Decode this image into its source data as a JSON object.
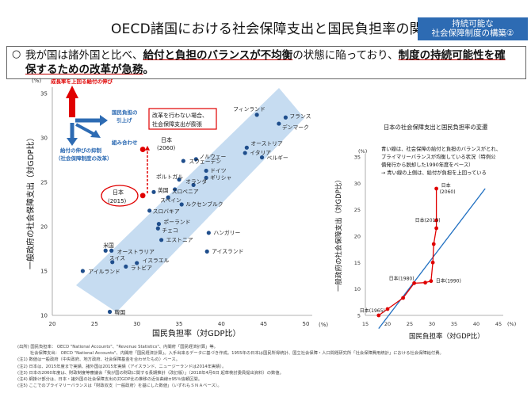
{
  "page": {
    "title": "OECD諸国における社会保障支出と国民負担率の関係",
    "badge": [
      "持続可能な",
      "社会保障制度の構築②"
    ],
    "headline_mark": "○",
    "headline": {
      "p1": "我が国は諸外国と比べ、",
      "p2": "給付と負担のバランスが不均衡",
      "p3": "の状態に陥っており、",
      "p4": "制度の持続可能性を確保するための改革が急務",
      "p5": "。"
    }
  },
  "main_chart": {
    "y_unit": "(%)",
    "x_unit": "(%)",
    "ylabel": "一般政府の社会保障支出（対GDP比）",
    "xlabel": "国民負担率（対GDP比）",
    "legend": {
      "up": "成長率を上回る給付の伸び",
      "right": [
        "国民負担の",
        "引上げ"
      ],
      "down": [
        "給付の伸びの抑制",
        "（社会保障制度の改革）"
      ],
      "diag": "組み合わせ"
    },
    "callout": [
      "改革を行わない場合、",
      "社会保障支出が膨張"
    ],
    "japan_2060_label": [
      "日本",
      "(2060)"
    ],
    "japan_2015_label": [
      "日本",
      "(2015)"
    ]
  },
  "inset_chart": {
    "title": "日本の社会保障支出と国民負担率の変遷",
    "y_unit": "(%)",
    "x_unit": "(%)",
    "ylabel": "一般政府の社会保障支出（対GDP比）",
    "xlabel": "国民負担率（対GDP比）",
    "note": [
      "青い線は、社会保障の給付と負担のバランスがとれ、",
      "プライマリーバランスが均衡している状況（特例公",
      "債発行から脱却した1990年度をベース）",
      "→ 青い線の上側は、給付が負担を上回っている"
    ]
  },
  "notes": [
    "(出所) 国民負担率： OECD \"National Accounts\"、\"Revenue Statistics\"、内閣府「国民経済計算」等。",
    "　　　社会保障支出： OECD \"National Accounts\"、内閣府「国民経済計算」。入手出来るデータに基づき作成。1955年の日本は国民所得統計、国立社会保障・人口問題研究所「社会保障費用統計」における社会保障給付費。",
    "(注1) 数値は一般政府（中央政府、地方政府、社会保障基金を合わせたもの）ベース。",
    "(注2) 日本は、2015年度まで実績、諸外国は2015年実績（アイスランド、ニュージーランドは2014年実績）。",
    "(注3) 日本の2060年度は、財政制度等審議会「我が国の財政に関する長期推計（改訂版）」（2018年4月6日 起草検討委員提出資料）の数値。",
    "(注4) 網掛け部分は、日本・諸外国の社会保障支出の対GDP比の推移の近似曲線±95％信頼区間。",
    "(注5) ここでのプライマリーバランスは「財政収支（一般政府）を基にした数値」（いずれもＳＮＡベース）。"
  ],
  "chart_data": [
    {
      "type": "scatter",
      "title": "",
      "xlabel": "国民負担率（対GDP比）",
      "ylabel": "一般政府の社会保障支出（対GDP比）",
      "xlim": [
        20,
        50
      ],
      "ylim": [
        10,
        35
      ],
      "x_ticks": [
        20,
        25,
        30,
        35,
        40,
        45,
        50
      ],
      "y_ticks": [
        10,
        15,
        20,
        25,
        30,
        35
      ],
      "grid": false,
      "points": [
        {
          "label": "フィンランド",
          "x": 44.2,
          "y": 32.6
        },
        {
          "label": "フランス",
          "x": 47.6,
          "y": 32.3
        },
        {
          "label": "デンマーク",
          "x": 46.8,
          "y": 31.6
        },
        {
          "label": "オーストリア",
          "x": 43.0,
          "y": 28.9
        },
        {
          "label": "イタリア",
          "x": 42.8,
          "y": 28.3
        },
        {
          "label": "ベルギー",
          "x": 44.8,
          "y": 27.8
        },
        {
          "label": "ノルウェー",
          "x": 37.0,
          "y": 27.6
        },
        {
          "label": "スウェーデン",
          "x": 35.5,
          "y": 27.4
        },
        {
          "label": "ドイツ",
          "x": 38.2,
          "y": 26.3
        },
        {
          "label": "ギリシャ",
          "x": 38.2,
          "y": 25.5
        },
        {
          "label": "ポルトガル",
          "x": 35.0,
          "y": 25.3
        },
        {
          "label": "オランダ",
          "x": 36.7,
          "y": 24.7
        },
        {
          "label": "スロベニア",
          "x": 34.5,
          "y": 24.2
        },
        {
          "label": "英国",
          "x": 32.0,
          "y": 23.9
        },
        {
          "label": "スペイン",
          "x": 33.7,
          "y": 23.3
        },
        {
          "label": "ルクセンブルク",
          "x": 35.3,
          "y": 22.5
        },
        {
          "label": "スロバキア",
          "x": 31.5,
          "y": 21.8
        },
        {
          "label": "ポーランド",
          "x": 32.6,
          "y": 20.3
        },
        {
          "label": "チェコ",
          "x": 32.5,
          "y": 19.8
        },
        {
          "label": "ハンガリー",
          "x": 38.5,
          "y": 19.3
        },
        {
          "label": "エストニア",
          "x": 32.9,
          "y": 18.5
        },
        {
          "label": "米国",
          "x": 26.3,
          "y": 17.3
        },
        {
          "label": "オーストラリア",
          "x": 27.0,
          "y": 17.3
        },
        {
          "label": "アイスランド",
          "x": 38.3,
          "y": 17.2
        },
        {
          "label": "スイス",
          "x": 27.1,
          "y": 16.0
        },
        {
          "label": "ラトビア",
          "x": 28.7,
          "y": 15.5
        },
        {
          "label": "イスラエル",
          "x": 30.0,
          "y": 15.9
        },
        {
          "label": "アイルランド",
          "x": 23.6,
          "y": 15.0
        },
        {
          "label": "韓国",
          "x": 26.8,
          "y": 10.4
        },
        {
          "label": "日本 (2015)",
          "x": 30.7,
          "y": 23.5,
          "highlight": true
        },
        {
          "label": "日本 (2060)",
          "x": 30.7,
          "y": 28.7,
          "highlight": true
        }
      ]
    },
    {
      "type": "line",
      "title": "日本の社会保障支出と国民負担率の変遷",
      "xlabel": "国民負担率（対GDP比）",
      "ylabel": "一般政府の社会保障支出（対GDP比）",
      "xlim": [
        15,
        45
      ],
      "ylim": [
        5,
        35
      ],
      "x_ticks": [
        15,
        20,
        25,
        30,
        35,
        40,
        45
      ],
      "y_ticks": [
        5,
        10,
        15,
        20,
        25,
        30,
        35
      ],
      "series": [
        {
          "name": "",
          "points": [
            {
              "label": "日本 (1965)",
              "x": 18.0,
              "y": 5.0
            },
            {
              "label": "",
              "x": 20.0,
              "y": 6.2
            },
            {
              "label": "",
              "x": 23.5,
              "y": 8.3
            },
            {
              "label": "日本 (1980)",
              "x": 26.0,
              "y": 11.1
            },
            {
              "label": "",
              "x": 28.5,
              "y": 11.2
            },
            {
              "label": "日本 (1990)",
              "x": 29.8,
              "y": 11.5
            },
            {
              "label": "",
              "x": 30.2,
              "y": 15.0
            },
            {
              "label": "",
              "x": 30.4,
              "y": 18.5
            },
            {
              "label": "",
              "x": 31.0,
              "y": 21.5
            },
            {
              "label": "日本 (2015)",
              "x": 31.0,
              "y": 23.0
            },
            {
              "label": "日本 (2060)",
              "x": 31.0,
              "y": 29.0
            }
          ]
        },
        {
          "name": "",
          "points": [
            {
              "x": 18.0,
              "y": 2.5
            },
            {
              "x": 42.0,
              "y": 29.0
            }
          ]
        }
      ]
    }
  ]
}
